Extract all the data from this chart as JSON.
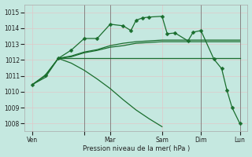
{
  "background_color": "#c5e8e0",
  "grid_color": "#dfc8c8",
  "line_color": "#1a6e2e",
  "ylim": [
    1007.5,
    1015.5
  ],
  "yticks": [
    1008,
    1009,
    1010,
    1011,
    1012,
    1013,
    1014,
    1015
  ],
  "xlabel": "Pression niveau de la mer( hPa )",
  "xtick_positions": [
    0,
    2,
    3,
    5,
    6.5,
    8
  ],
  "xtick_labels": [
    "Ven",
    "",
    "Mar",
    "Sam",
    "Dim",
    "Lun"
  ],
  "vlines": [
    2,
    3,
    6.5,
    8
  ],
  "figsize": [
    3.2,
    2.0
  ],
  "dpi": 100,
  "series": [
    {
      "x": [
        0,
        0.5,
        1.0,
        1.5,
        2.0,
        2.5,
        3.0,
        3.5,
        3.8,
        4.0,
        4.25,
        4.5,
        5.0,
        5.2,
        5.5,
        6.0,
        6.2,
        6.5,
        7.0,
        7.3,
        7.5,
        7.7,
        8.0
      ],
      "y": [
        1010.45,
        1011.05,
        1012.1,
        1012.62,
        1013.35,
        1013.35,
        1014.25,
        1014.15,
        1013.85,
        1014.5,
        1014.65,
        1014.7,
        1014.75,
        1013.65,
        1013.7,
        1013.2,
        1013.75,
        1013.85,
        1012.05,
        1011.45,
        1010.1,
        1009.0,
        1008.0
      ],
      "marker": true,
      "lw": 0.9
    },
    {
      "x": [
        0,
        0.5,
        1.0,
        1.5,
        2.0,
        2.5,
        3.0,
        3.5,
        4.0,
        4.5,
        5.0,
        5.5,
        6.0,
        6.5,
        7.0,
        7.5,
        8.0
      ],
      "y": [
        1010.45,
        1010.9,
        1012.1,
        1012.2,
        1012.45,
        1012.6,
        1012.8,
        1012.9,
        1013.05,
        1013.1,
        1013.15,
        1013.15,
        1013.15,
        1013.15,
        1013.15,
        1013.15,
        1013.15
      ],
      "marker": false,
      "lw": 0.9
    },
    {
      "x": [
        1.0,
        8.0
      ],
      "y": [
        1012.1,
        1012.1
      ],
      "marker": false,
      "lw": 0.9
    },
    {
      "x": [
        1.0,
        1.5,
        2.0,
        2.5,
        3.0,
        3.5,
        4.0,
        4.5,
        5.0
      ],
      "y": [
        1012.1,
        1011.8,
        1011.35,
        1010.8,
        1010.2,
        1009.5,
        1008.85,
        1008.3,
        1007.8
      ],
      "marker": false,
      "lw": 0.9
    },
    {
      "x": [
        0,
        0.5,
        1.0,
        1.5,
        2.0,
        2.5,
        3.0,
        3.5,
        4.0,
        4.5,
        5.0,
        5.5,
        6.0,
        6.5,
        7.0,
        7.5,
        8.0
      ],
      "y": [
        1010.45,
        1011.0,
        1012.1,
        1012.25,
        1012.5,
        1012.65,
        1012.9,
        1013.05,
        1013.15,
        1013.2,
        1013.25,
        1013.25,
        1013.25,
        1013.25,
        1013.25,
        1013.25,
        1013.25
      ],
      "marker": false,
      "lw": 0.9
    }
  ]
}
